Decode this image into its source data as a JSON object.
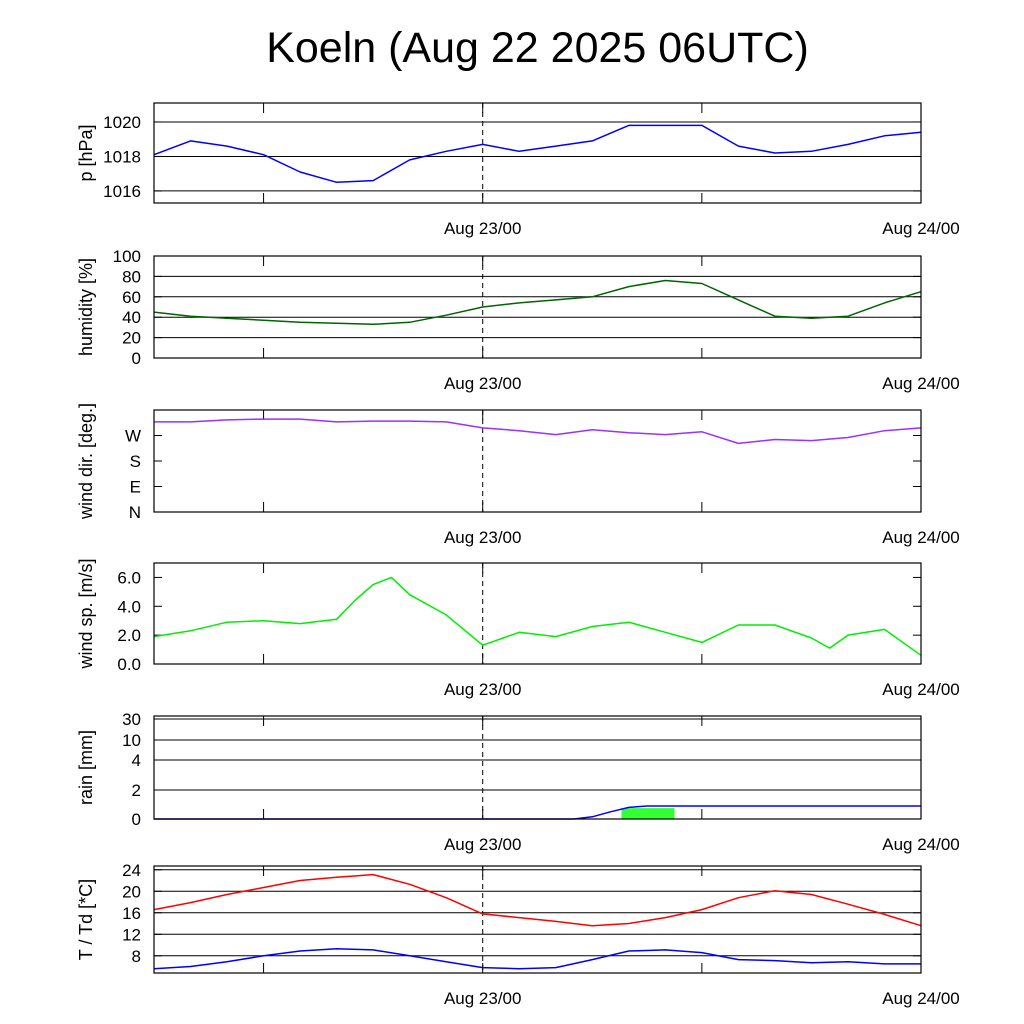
{
  "chart_data": {
    "type": "line",
    "title": "Koeln (Aug 22 2025 06UTC)",
    "x_unit": "hours since Aug 22 06UTC",
    "x_range": [
      0,
      42
    ],
    "x_ticks": [
      6,
      18,
      30
    ],
    "x_labels": [
      {
        "x": 18,
        "label": "Aug 23/00"
      },
      {
        "x": 42,
        "label": "Aug 24/00"
      }
    ],
    "dashed_marker_x": 18,
    "x": [
      0,
      2,
      4,
      6,
      8,
      10,
      12,
      14,
      16,
      18,
      20,
      22,
      24,
      26,
      28,
      30,
      32,
      34,
      36,
      38,
      40,
      42
    ],
    "panels": [
      {
        "id": "pressure",
        "ylabel": "p [hPa]",
        "ylim": [
          1015.3,
          1021.1
        ],
        "yticks": [
          {
            "v": 1016,
            "label": "1016"
          },
          {
            "v": 1018,
            "label": "1018"
          },
          {
            "v": 1020,
            "label": "1020"
          }
        ],
        "grid": [
          1016,
          1018,
          1020
        ],
        "series": [
          {
            "name": "pressure",
            "color": "#0000ff",
            "values": [
              1018.1,
              1018.9,
              1018.6,
              1018.1,
              1017.1,
              1016.5,
              1016.6,
              1017.8,
              1018.3,
              1018.7,
              1018.3,
              1018.6,
              1018.9,
              1019.8,
              1019.8,
              1019.8,
              1018.6,
              1018.2,
              1018.3,
              1018.7,
              1019.2,
              1019.4
            ]
          }
        ]
      },
      {
        "id": "humidity",
        "ylabel": "humidity [%]",
        "ylim": [
          0,
          100
        ],
        "yticks": [
          {
            "v": 0,
            "label": "0"
          },
          {
            "v": 20,
            "label": "20"
          },
          {
            "v": 40,
            "label": "40"
          },
          {
            "v": 60,
            "label": "60"
          },
          {
            "v": 80,
            "label": "80"
          },
          {
            "v": 100,
            "label": "100"
          }
        ],
        "grid": [
          20,
          40,
          60,
          80
        ],
        "series": [
          {
            "name": "humidity",
            "color": "#006400",
            "values": [
              45,
              41,
              39,
              37,
              35,
              34,
              33,
              35,
              42,
              50,
              54,
              57,
              60,
              70,
              76,
              73,
              57,
              41,
              39,
              41,
              54,
              65
            ]
          }
        ]
      },
      {
        "id": "wind_direction",
        "ylabel": "wind dir. [deg.]",
        "ylim": [
          0,
          360
        ],
        "yticks": [
          {
            "v": 0,
            "label": "N"
          },
          {
            "v": 90,
            "label": "E"
          },
          {
            "v": 180,
            "label": "S"
          },
          {
            "v": 270,
            "label": "W"
          }
        ],
        "grid": [],
        "series": [
          {
            "name": "wind direction",
            "color": "#9b30ff",
            "values": [
              318,
              318,
              325,
              328,
              328,
              318,
              321,
              321,
              318,
              297,
              287,
              273,
              290,
              280,
              273,
              283,
              242,
              256,
              252,
              263,
              287,
              297
            ]
          }
        ]
      },
      {
        "id": "wind_speed",
        "ylabel": "wind sp. [m/s]",
        "ylim": [
          0,
          7
        ],
        "yticks": [
          {
            "v": 0,
            "label": "0.0"
          },
          {
            "v": 2,
            "label": "2.0"
          },
          {
            "v": 4,
            "label": "4.0"
          },
          {
            "v": 6,
            "label": "6.0"
          }
        ],
        "grid": [],
        "series": [
          {
            "name": "wind speed",
            "color": "#00ee00",
            "x": [
              0,
              2,
              4,
              6,
              8,
              10,
              11,
              12,
              13,
              14,
              16,
              18,
              20,
              22,
              24,
              26,
              28,
              30,
              32,
              34,
              36,
              37,
              38,
              40,
              42
            ],
            "values": [
              1.9,
              2.3,
              2.9,
              3.0,
              2.8,
              3.1,
              4.4,
              5.5,
              6.0,
              4.8,
              3.4,
              1.3,
              2.2,
              1.9,
              2.6,
              2.9,
              2.2,
              1.5,
              2.7,
              2.7,
              1.8,
              1.1,
              2.0,
              2.4,
              0.6
            ]
          }
        ]
      },
      {
        "id": "rain",
        "ylabel": "rain [mm]",
        "ylim": [
          0,
          30
        ],
        "scale": "piecewise",
        "yticks": [
          {
            "v": 0,
            "label": "0"
          },
          {
            "v": 2,
            "label": "2"
          },
          {
            "v": 4,
            "label": "4"
          },
          {
            "v": 10,
            "label": "10"
          },
          {
            "v": 30,
            "label": "30"
          }
        ],
        "grid": [
          2,
          4,
          10,
          30
        ],
        "bars": {
          "name": "precipitation",
          "color": "#33ff33",
          "x": [
            25.6,
            28.5
          ],
          "values": [
            0.75
          ]
        },
        "series": [
          {
            "name": "accumulated rain",
            "color": "#0000ff",
            "x": [
              0,
              23,
              24,
              25,
              26,
              27,
              42
            ],
            "values": [
              0,
              0,
              0.15,
              0.5,
              0.8,
              0.9,
              0.9
            ]
          }
        ]
      },
      {
        "id": "temperature",
        "ylabel": "T / Td [*C]",
        "ylim": [
          4.8,
          24.7
        ],
        "yticks": [
          {
            "v": 8,
            "label": "8"
          },
          {
            "v": 12,
            "label": "12"
          },
          {
            "v": 16,
            "label": "16"
          },
          {
            "v": 20,
            "label": "20"
          },
          {
            "v": 24,
            "label": "24"
          }
        ],
        "grid": [
          8,
          12,
          16,
          20,
          24
        ],
        "series": [
          {
            "name": "T",
            "color": "#ff0000",
            "values": [
              16.6,
              17.9,
              19.4,
              20.7,
              22.0,
              22.6,
              23.1,
              21.3,
              18.8,
              15.8,
              15.1,
              14.4,
              13.6,
              14.0,
              15.1,
              16.6,
              18.8,
              20.1,
              19.4,
              17.6,
              15.7,
              13.6
            ]
          },
          {
            "name": "Td",
            "color": "#0000ff",
            "values": [
              5.6,
              6.0,
              6.9,
              8.0,
              8.9,
              9.3,
              9.1,
              8.0,
              6.9,
              5.8,
              5.6,
              5.8,
              7.3,
              8.9,
              9.1,
              8.6,
              7.3,
              7.1,
              6.7,
              6.9,
              6.5,
              6.5
            ]
          }
        ]
      }
    ]
  }
}
